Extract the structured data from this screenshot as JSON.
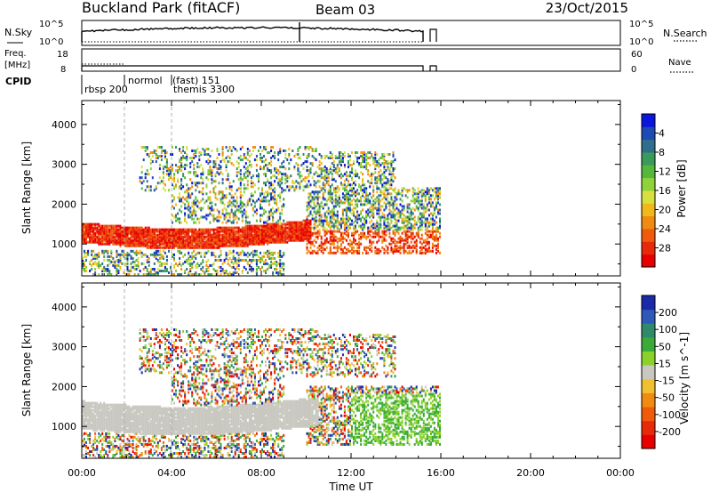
{
  "header": {
    "station": "Buckland Park (fitACF)",
    "beam": "Beam 03",
    "date": "23/Oct/2015"
  },
  "summary_panel": {
    "nsky_label": "N.Sky",
    "nsky_ticks": [
      "10^5",
      "10^0"
    ],
    "nsky_right_ticks": [
      "10^5",
      "10^0"
    ],
    "nsearch_label": "N.Search",
    "freq_label_line1": "Freq.",
    "freq_label_line2": "[MHz]",
    "freq_ticks": [
      "18",
      "8"
    ],
    "nave_ticks": [
      "60",
      "0"
    ],
    "nave_label": "Nave",
    "cpid_label": "CPID",
    "cpid_annotations": [
      "rbsp 200",
      "normol",
      "(fast) 151",
      "themis 3300"
    ]
  },
  "chart_data": [
    {
      "type": "heatmap",
      "title": "",
      "ylabel": "Slant Range [km]",
      "xlabel": "",
      "xlim": [
        "00:00",
        "24:00"
      ],
      "ylim": [
        200,
        4600
      ],
      "yticks": [
        "1000",
        "2000",
        "3000",
        "4000"
      ],
      "colorbar": {
        "label": "Power [dB]",
        "ticks": [
          "4",
          "8",
          "12",
          "16",
          "20",
          "24",
          "28"
        ],
        "colors": [
          "#0a16dc",
          "#1e4ab4",
          "#2f6e8c",
          "#3a9a5a",
          "#56b83a",
          "#8fd23a",
          "#d8e040",
          "#f2b81a",
          "#f08a10",
          "#f05a0a",
          "#e82a0a",
          "#e80000"
        ]
      }
    },
    {
      "type": "heatmap",
      "title": "",
      "ylabel": "Slant Range [km]",
      "xlabel": "Time UT",
      "xlim": [
        "00:00",
        "24:00"
      ],
      "ylim": [
        200,
        4600
      ],
      "yticks": [
        "1000",
        "2000",
        "3000",
        "4000"
      ],
      "xticks": [
        "00:00",
        "04:00",
        "08:00",
        "12:00",
        "16:00",
        "20:00",
        "00:00"
      ],
      "colorbar": {
        "label": "Velocity [m s^-1]",
        "ticks": [
          "200",
          "100",
          "50",
          "15",
          "-15",
          "-50",
          "-100",
          "-200"
        ],
        "colors": [
          "#1a2aa8",
          "#2f58b8",
          "#2e8a6a",
          "#3aaa3a",
          "#8ad22a",
          "#c8c8c0",
          "#f0c030",
          "#f08a10",
          "#f05a0a",
          "#e82a0a",
          "#e80000"
        ]
      }
    }
  ]
}
